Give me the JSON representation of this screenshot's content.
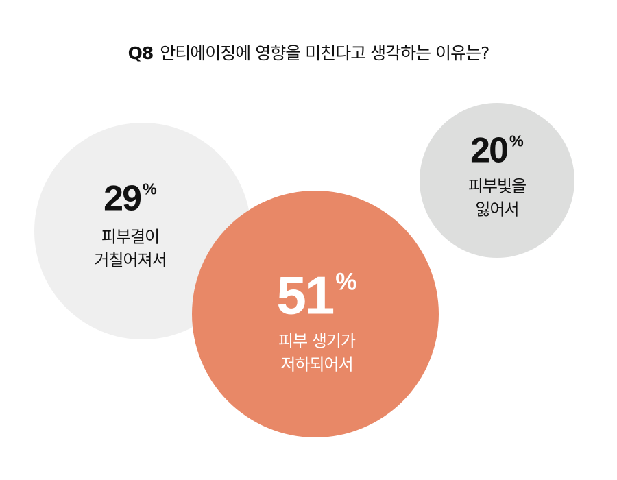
{
  "title": {
    "q": "Q8",
    "text": "안티에이징에 영향을 미친다고 생각하는 이유는?"
  },
  "chart_data": {
    "type": "bubble",
    "title": "Q8 안티에이징에 영향을 미친다고 생각하는 이유는?",
    "unit": "%",
    "items": [
      {
        "label_line1": "피부결이",
        "label_line2": "거칠어져서",
        "value": 29,
        "color": "#EFEFEF",
        "text_color": "#111111"
      },
      {
        "label_line1": "피부 생기가",
        "label_line2": "저하되어서",
        "value": 51,
        "color": "#E88867",
        "text_color": "#FFFFFF"
      },
      {
        "label_line1": "피부빛을",
        "label_line2": "잃어서",
        "value": 20,
        "color": "#DDDEDD",
        "text_color": "#111111"
      }
    ]
  }
}
